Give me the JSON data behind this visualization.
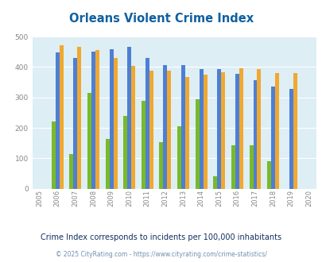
{
  "title": "Orleans Violent Crime Index",
  "years": [
    2005,
    2006,
    2007,
    2008,
    2009,
    2010,
    2011,
    2012,
    2013,
    2014,
    2015,
    2016,
    2017,
    2018,
    2019,
    2020
  ],
  "orleans": [
    0,
    220,
    113,
    315,
    163,
    238,
    290,
    154,
    206,
    293,
    40,
    142,
    143,
    90,
    0,
    0
  ],
  "massachusetts": [
    0,
    448,
    431,
    452,
    459,
    466,
    429,
    406,
    406,
    394,
    394,
    377,
    356,
    336,
    328,
    0
  ],
  "national": [
    0,
    473,
    466,
    455,
    430,
    404,
    387,
    387,
    366,
    375,
    383,
    397,
    394,
    381,
    380,
    0
  ],
  "orleans_color": "#7aba28",
  "massachusetts_color": "#4d7fd4",
  "national_color": "#f0a830",
  "bg_color": "#ddeef5",
  "title_color": "#1060a0",
  "subtitle": "Crime Index corresponds to incidents per 100,000 inhabitants",
  "subtitle_color": "#103060",
  "footer": "© 2025 CityRating.com - https://www.cityrating.com/crime-statistics/",
  "footer_color": "#7090b0",
  "ylim": [
    0,
    500
  ],
  "yticks": [
    0,
    100,
    200,
    300,
    400,
    500
  ]
}
